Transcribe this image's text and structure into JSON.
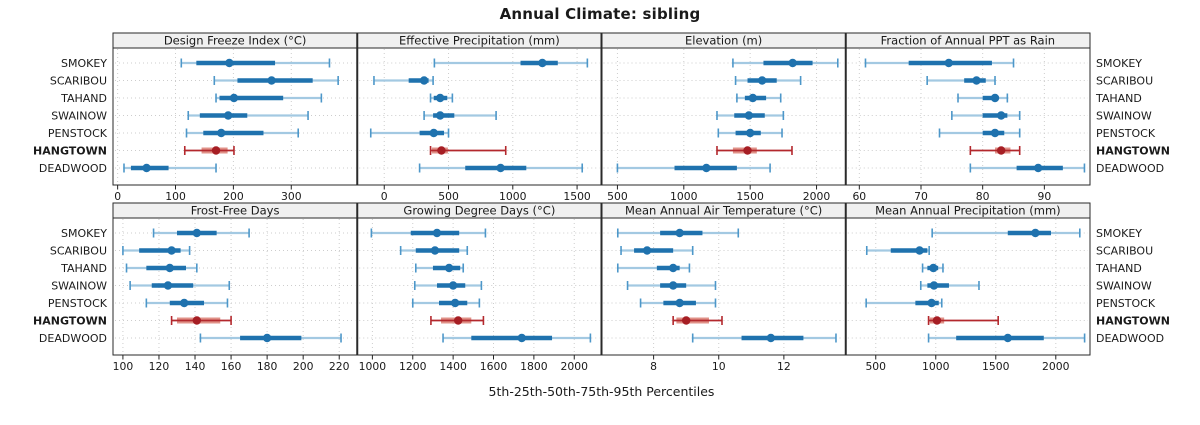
{
  "title": "Annual Climate: sibling",
  "caption": "5th-25th-50th-75th-95th Percentiles",
  "highlight_station": "HANGTOWN",
  "colors": {
    "series_blue": "#1F72AE",
    "series_blue_light": "#A3C9E2",
    "series_blue_tick": "#4D97C9",
    "highlight_red": "#B3282D",
    "highlight_red_band": "#E09288",
    "highlight_red_dot": "#A61E24",
    "grid": "#CDCDCD",
    "border": "#2A2A2A",
    "strip_bg": "#F0F0F0",
    "text": "#1A1A1A"
  },
  "chart_data": {
    "type": "scatter",
    "subtype": "percentile-range-dotplot",
    "layout": {
      "rows": 2,
      "cols": 4,
      "grid": true,
      "labels_both_sides": true
    },
    "percentiles": [
      "5th",
      "25th",
      "50th",
      "75th",
      "95th"
    ],
    "stations": [
      "SMOKEY",
      "SCARIBOU",
      "TAHAND",
      "SWAINOW",
      "PENSTOCK",
      "HANGTOWN",
      "DEADWOOD"
    ],
    "panels": [
      {
        "title": "Design Freeze Index (°C)",
        "row": 1,
        "ticks": [
          0,
          100,
          200,
          300
        ],
        "domain": [
          -8,
          414
        ],
        "values": [
          [
            110,
            136,
            193,
            272,
            366
          ],
          [
            167,
            207,
            266,
            337,
            381
          ],
          [
            170,
            176,
            201,
            286,
            352
          ],
          [
            122,
            142,
            191,
            224,
            329
          ],
          [
            119,
            148,
            179,
            252,
            312
          ],
          [
            116,
            145,
            170,
            190,
            201
          ],
          [
            11,
            23,
            50,
            88,
            170
          ]
        ]
      },
      {
        "title": "Effective Precipitation (mm)",
        "row": 1,
        "ticks": [
          0,
          500,
          1000,
          1500
        ],
        "domain": [
          -210,
          1690
        ],
        "values": [
          [
            390,
            1060,
            1230,
            1350,
            1580
          ],
          [
            -80,
            190,
            310,
            345,
            380
          ],
          [
            360,
            385,
            435,
            490,
            530
          ],
          [
            310,
            380,
            435,
            545,
            870
          ],
          [
            -105,
            275,
            385,
            465,
            500
          ],
          [
            360,
            370,
            445,
            495,
            945
          ],
          [
            275,
            630,
            905,
            1105,
            1540
          ]
        ]
      },
      {
        "title": "Elevation (m)",
        "row": 1,
        "ticks": [
          500,
          1000,
          1500,
          2000
        ],
        "domain": [
          380,
          2220
        ],
        "values": [
          [
            1370,
            1600,
            1820,
            1970,
            2160
          ],
          [
            1390,
            1480,
            1590,
            1700,
            1880
          ],
          [
            1400,
            1460,
            1520,
            1620,
            1730
          ],
          [
            1250,
            1380,
            1490,
            1610,
            1750
          ],
          [
            1260,
            1390,
            1500,
            1580,
            1740
          ],
          [
            1250,
            1370,
            1480,
            1550,
            1815
          ],
          [
            500,
            930,
            1170,
            1400,
            1650
          ]
        ]
      },
      {
        "title": "Fraction of Annual PPT as Rain",
        "row": 1,
        "ticks": [
          60,
          70,
          80,
          90
        ],
        "domain": [
          57.8,
          97.4
        ],
        "values": [
          [
            61,
            68,
            74.5,
            81.5,
            85
          ],
          [
            71,
            77,
            79,
            80.5,
            82
          ],
          [
            76,
            80,
            82,
            82.5,
            84
          ],
          [
            75,
            80,
            83,
            84,
            86
          ],
          [
            73,
            80,
            82,
            83.5,
            86
          ],
          [
            78,
            82,
            83,
            84.5,
            86
          ],
          [
            78,
            85.5,
            89,
            93,
            96.5
          ]
        ]
      },
      {
        "title": "Frost-Free Days",
        "row": 2,
        "ticks": [
          100,
          120,
          140,
          160,
          180,
          200,
          220
        ],
        "domain": [
          94.5,
          230
        ],
        "values": [
          [
            117,
            130,
            141,
            152,
            170
          ],
          [
            100,
            109,
            127,
            132,
            137
          ],
          [
            102,
            113,
            126,
            135,
            141
          ],
          [
            104,
            116,
            125,
            139,
            159
          ],
          [
            113,
            126,
            134,
            145,
            158
          ],
          [
            127,
            130,
            141,
            154,
            160
          ],
          [
            143,
            165,
            180,
            199,
            221
          ]
        ]
      },
      {
        "title": "Growing Degree Days (°C)",
        "row": 2,
        "ticks": [
          1000,
          1200,
          1400,
          1600,
          1800,
          2000
        ],
        "domain": [
          925,
          2135
        ],
        "values": [
          [
            995,
            1190,
            1320,
            1430,
            1560
          ],
          [
            1140,
            1215,
            1310,
            1430,
            1470
          ],
          [
            1215,
            1300,
            1380,
            1435,
            1450
          ],
          [
            1210,
            1320,
            1400,
            1460,
            1540
          ],
          [
            1200,
            1330,
            1410,
            1470,
            1530
          ],
          [
            1290,
            1340,
            1425,
            1490,
            1550
          ],
          [
            1350,
            1490,
            1740,
            1890,
            2080
          ]
        ]
      },
      {
        "title": "Mean Annual Air Temperature (°C)",
        "row": 2,
        "ticks": [
          8,
          10,
          12
        ],
        "domain": [
          6.4,
          13.9
        ],
        "values": [
          [
            6.9,
            8.2,
            8.8,
            9.5,
            10.6
          ],
          [
            7.0,
            7.4,
            7.8,
            8.6,
            9.2
          ],
          [
            6.9,
            8.1,
            8.6,
            8.8,
            9.1
          ],
          [
            7.2,
            8.2,
            8.6,
            9.0,
            9.9
          ],
          [
            7.6,
            8.3,
            8.8,
            9.3,
            9.9
          ],
          [
            8.6,
            8.7,
            9.0,
            9.7,
            10.1
          ],
          [
            9.2,
            10.7,
            11.6,
            12.6,
            13.6
          ]
        ]
      },
      {
        "title": "Mean Annual Precipitation (mm)",
        "row": 2,
        "ticks": [
          500,
          1000,
          1500,
          2000
        ],
        "domain": [
          250,
          2285
        ],
        "values": [
          [
            970,
            1600,
            1830,
            1960,
            2200
          ],
          [
            425,
            625,
            865,
            930,
            945
          ],
          [
            890,
            930,
            980,
            1020,
            1060
          ],
          [
            875,
            930,
            985,
            1110,
            1360
          ],
          [
            420,
            830,
            965,
            1025,
            1050
          ],
          [
            940,
            950,
            1010,
            1070,
            1520
          ],
          [
            940,
            1170,
            1600,
            1900,
            2240
          ]
        ]
      }
    ]
  }
}
